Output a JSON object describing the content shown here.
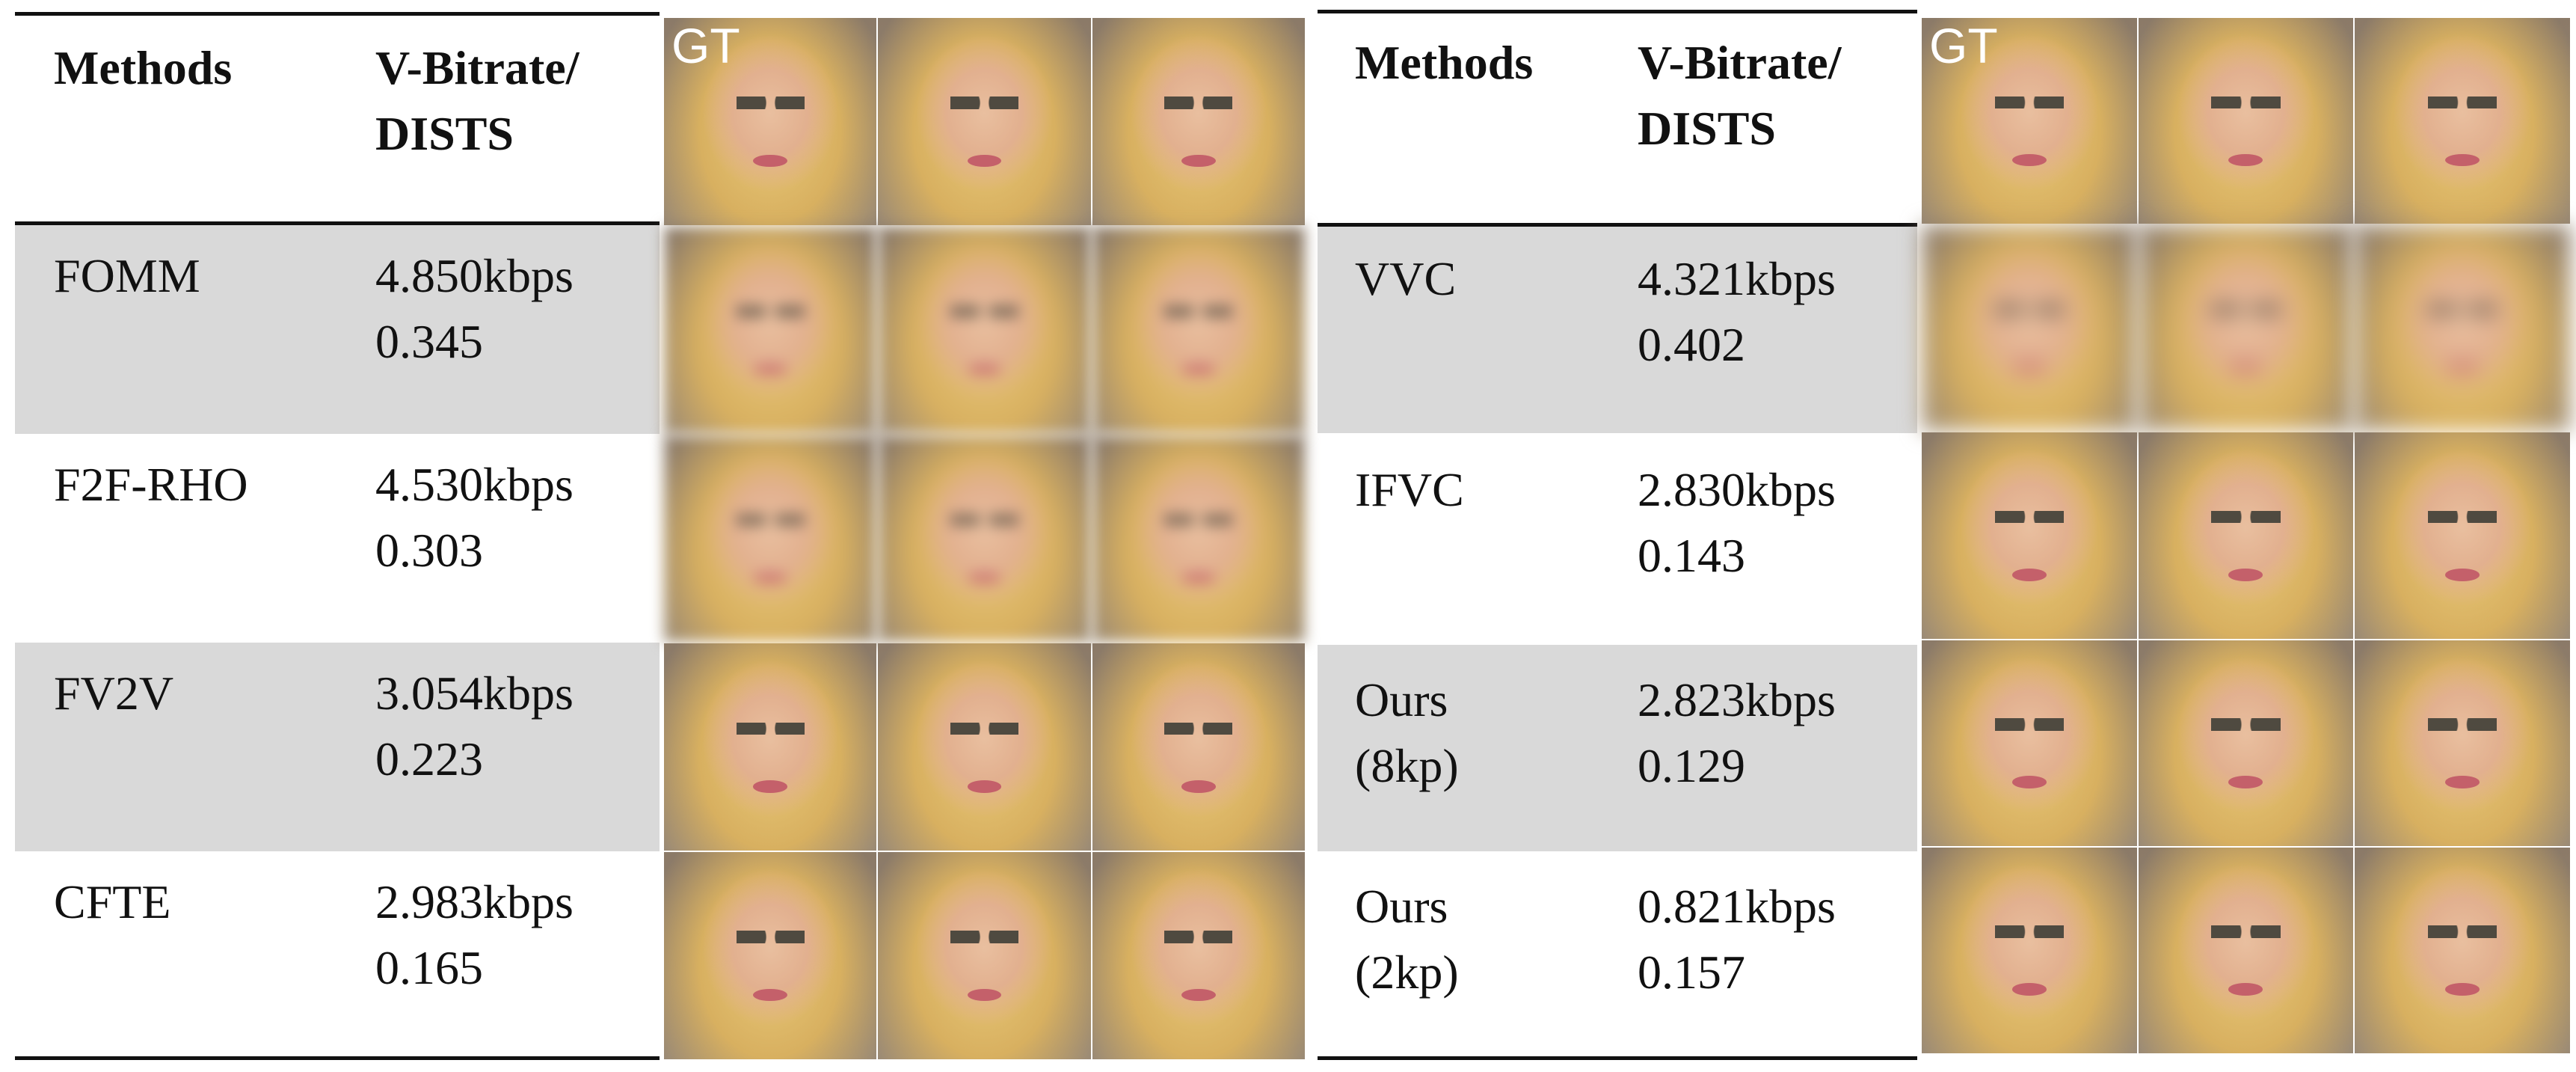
{
  "left": {
    "header": {
      "method": "Methods",
      "metric": "V-Bitrate/\nDISTS"
    },
    "rows": [
      {
        "method": "FOMM",
        "metric": "4.850kbps\n0.345",
        "shaded": true
      },
      {
        "method": "F2F-RHO",
        "metric": "4.530kbps\n0.303",
        "shaded": false
      },
      {
        "method": "FV2V",
        "metric": "3.054kbps\n0.223",
        "shaded": true
      },
      {
        "method": "CFTE",
        "metric": "2.983kbps\n0.165",
        "shaded": false
      }
    ],
    "gt_label": "GT"
  },
  "right": {
    "header": {
      "method": "Methods",
      "metric": "V-Bitrate/\nDISTS"
    },
    "rows": [
      {
        "method": "VVC",
        "metric": "4.321kbps\n0.402",
        "shaded": true
      },
      {
        "method": "IFVC",
        "metric": "2.830kbps\n0.143",
        "shaded": false
      },
      {
        "method": "Ours\n(8kp)",
        "metric": "2.823kbps\n0.129",
        "shaded": true
      },
      {
        "method": "Ours\n(2kp)",
        "metric": "0.821kbps\n0.157",
        "shaded": false
      }
    ],
    "gt_label": "GT"
  },
  "colors": {
    "shade": "#d9d9d9",
    "rule": "#111111"
  }
}
